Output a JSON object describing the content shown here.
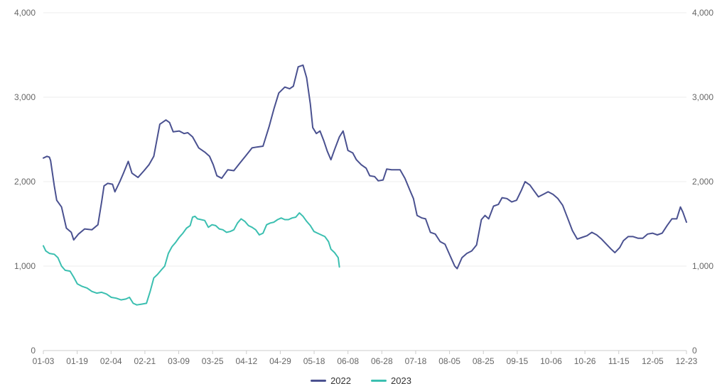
{
  "chart_data": {
    "type": "line",
    "x_ticks": [
      "01-03",
      "01-19",
      "02-04",
      "02-21",
      "03-09",
      "03-25",
      "04-12",
      "04-29",
      "05-18",
      "06-08",
      "06-28",
      "07-18",
      "08-05",
      "08-25",
      "09-15",
      "10-06",
      "10-26",
      "11-15",
      "12-05",
      "12-23"
    ],
    "y_ticks_left": [
      "0",
      "1,000",
      "2,000",
      "3,000",
      "4,000"
    ],
    "y_ticks_right": [
      "0",
      "1,000",
      "2,000",
      "3,000",
      "4,000"
    ],
    "ylim": [
      0,
      4000
    ],
    "grid": true,
    "legend_position": "bottom-center",
    "series": [
      {
        "name": "2022",
        "color": "#4a5190",
        "points": [
          [
            0,
            2280
          ],
          [
            3,
            2300
          ],
          [
            5,
            2290
          ],
          [
            6,
            2250
          ],
          [
            9,
            1950
          ],
          [
            11,
            1780
          ],
          [
            15,
            1700
          ],
          [
            19,
            1450
          ],
          [
            23,
            1400
          ],
          [
            25,
            1310
          ],
          [
            29,
            1380
          ],
          [
            34,
            1440
          ],
          [
            40,
            1430
          ],
          [
            45,
            1490
          ],
          [
            48,
            1760
          ],
          [
            50,
            1950
          ],
          [
            53,
            1980
          ],
          [
            57,
            1970
          ],
          [
            59,
            1880
          ],
          [
            63,
            2000
          ],
          [
            66,
            2100
          ],
          [
            70,
            2240
          ],
          [
            73,
            2100
          ],
          [
            78,
            2050
          ],
          [
            83,
            2130
          ],
          [
            87,
            2200
          ],
          [
            91,
            2300
          ],
          [
            96,
            2680
          ],
          [
            101,
            2730
          ],
          [
            104,
            2700
          ],
          [
            107,
            2590
          ],
          [
            112,
            2600
          ],
          [
            116,
            2570
          ],
          [
            119,
            2580
          ],
          [
            123,
            2530
          ],
          [
            128,
            2400
          ],
          [
            133,
            2350
          ],
          [
            137,
            2300
          ],
          [
            140,
            2200
          ],
          [
            143,
            2070
          ],
          [
            147,
            2040
          ],
          [
            152,
            2140
          ],
          [
            157,
            2130
          ],
          [
            162,
            2220
          ],
          [
            167,
            2310
          ],
          [
            172,
            2400
          ],
          [
            176,
            2410
          ],
          [
            181,
            2420
          ],
          [
            186,
            2650
          ],
          [
            190,
            2860
          ],
          [
            194,
            3050
          ],
          [
            199,
            3120
          ],
          [
            203,
            3100
          ],
          [
            206,
            3130
          ],
          [
            210,
            3360
          ],
          [
            214,
            3380
          ],
          [
            217,
            3230
          ],
          [
            220,
            2920
          ],
          [
            222,
            2640
          ],
          [
            225,
            2570
          ],
          [
            228,
            2600
          ],
          [
            231,
            2490
          ],
          [
            234,
            2360
          ],
          [
            237,
            2260
          ],
          [
            240,
            2380
          ],
          [
            244,
            2530
          ],
          [
            247,
            2600
          ],
          [
            251,
            2370
          ],
          [
            255,
            2340
          ],
          [
            258,
            2260
          ],
          [
            262,
            2200
          ],
          [
            266,
            2160
          ],
          [
            269,
            2070
          ],
          [
            273,
            2060
          ],
          [
            276,
            2010
          ],
          [
            280,
            2020
          ],
          [
            283,
            2150
          ],
          [
            287,
            2140
          ],
          [
            291,
            2140
          ],
          [
            294,
            2140
          ],
          [
            298,
            2040
          ],
          [
            302,
            1900
          ],
          [
            305,
            1800
          ],
          [
            308,
            1600
          ],
          [
            312,
            1570
          ],
          [
            315,
            1560
          ],
          [
            319,
            1400
          ],
          [
            323,
            1380
          ],
          [
            327,
            1290
          ],
          [
            331,
            1260
          ],
          [
            335,
            1130
          ],
          [
            339,
            1000
          ],
          [
            341,
            970
          ],
          [
            345,
            1100
          ],
          [
            349,
            1150
          ],
          [
            353,
            1180
          ],
          [
            357,
            1250
          ],
          [
            361,
            1550
          ],
          [
            364,
            1600
          ],
          [
            367,
            1560
          ],
          [
            371,
            1710
          ],
          [
            375,
            1730
          ],
          [
            378,
            1810
          ],
          [
            382,
            1800
          ],
          [
            386,
            1760
          ],
          [
            390,
            1780
          ],
          [
            394,
            1900
          ],
          [
            397,
            2000
          ],
          [
            401,
            1960
          ],
          [
            404,
            1900
          ],
          [
            408,
            1820
          ],
          [
            412,
            1850
          ],
          [
            416,
            1880
          ],
          [
            420,
            1850
          ],
          [
            424,
            1800
          ],
          [
            428,
            1720
          ],
          [
            432,
            1570
          ],
          [
            436,
            1420
          ],
          [
            440,
            1320
          ],
          [
            444,
            1340
          ],
          [
            448,
            1360
          ],
          [
            452,
            1400
          ],
          [
            456,
            1370
          ],
          [
            460,
            1320
          ],
          [
            464,
            1260
          ],
          [
            468,
            1200
          ],
          [
            471,
            1160
          ],
          [
            475,
            1220
          ],
          [
            478,
            1300
          ],
          [
            482,
            1350
          ],
          [
            486,
            1350
          ],
          [
            490,
            1330
          ],
          [
            494,
            1330
          ],
          [
            498,
            1380
          ],
          [
            502,
            1390
          ],
          [
            506,
            1370
          ],
          [
            510,
            1390
          ],
          [
            514,
            1480
          ],
          [
            518,
            1560
          ],
          [
            522,
            1560
          ],
          [
            525,
            1700
          ],
          [
            527,
            1640
          ],
          [
            530,
            1520
          ]
        ]
      },
      {
        "name": "2023",
        "color": "#3bbfb0",
        "points": [
          [
            0,
            1240
          ],
          [
            2,
            1180
          ],
          [
            5,
            1150
          ],
          [
            9,
            1140
          ],
          [
            12,
            1100
          ],
          [
            15,
            1000
          ],
          [
            18,
            950
          ],
          [
            22,
            940
          ],
          [
            25,
            870
          ],
          [
            28,
            790
          ],
          [
            32,
            760
          ],
          [
            36,
            740
          ],
          [
            40,
            700
          ],
          [
            44,
            680
          ],
          [
            48,
            690
          ],
          [
            52,
            670
          ],
          [
            56,
            630
          ],
          [
            60,
            620
          ],
          [
            64,
            600
          ],
          [
            68,
            610
          ],
          [
            71,
            630
          ],
          [
            74,
            560
          ],
          [
            77,
            540
          ],
          [
            81,
            550
          ],
          [
            85,
            560
          ],
          [
            88,
            700
          ],
          [
            91,
            860
          ],
          [
            94,
            900
          ],
          [
            97,
            950
          ],
          [
            100,
            1000
          ],
          [
            103,
            1150
          ],
          [
            106,
            1230
          ],
          [
            109,
            1280
          ],
          [
            112,
            1340
          ],
          [
            115,
            1390
          ],
          [
            118,
            1450
          ],
          [
            121,
            1480
          ],
          [
            123,
            1580
          ],
          [
            125,
            1590
          ],
          [
            127,
            1560
          ],
          [
            130,
            1550
          ],
          [
            133,
            1540
          ],
          [
            136,
            1460
          ],
          [
            139,
            1490
          ],
          [
            142,
            1480
          ],
          [
            145,
            1440
          ],
          [
            148,
            1430
          ],
          [
            151,
            1400
          ],
          [
            154,
            1410
          ],
          [
            157,
            1430
          ],
          [
            160,
            1510
          ],
          [
            163,
            1560
          ],
          [
            166,
            1530
          ],
          [
            169,
            1480
          ],
          [
            172,
            1460
          ],
          [
            175,
            1430
          ],
          [
            178,
            1370
          ],
          [
            181,
            1390
          ],
          [
            184,
            1490
          ],
          [
            187,
            1510
          ],
          [
            190,
            1520
          ],
          [
            193,
            1550
          ],
          [
            196,
            1570
          ],
          [
            199,
            1550
          ],
          [
            202,
            1550
          ],
          [
            205,
            1570
          ],
          [
            208,
            1580
          ],
          [
            211,
            1630
          ],
          [
            214,
            1590
          ],
          [
            217,
            1530
          ],
          [
            220,
            1480
          ],
          [
            223,
            1410
          ],
          [
            226,
            1390
          ],
          [
            229,
            1370
          ],
          [
            232,
            1350
          ],
          [
            235,
            1290
          ],
          [
            237,
            1200
          ],
          [
            240,
            1160
          ],
          [
            242,
            1120
          ],
          [
            243,
            1100
          ],
          [
            244,
            990
          ]
        ]
      }
    ]
  },
  "legend": [
    {
      "label": "2022",
      "color": "#4a5190"
    },
    {
      "label": "2023",
      "color": "#3bbfb0"
    }
  ]
}
